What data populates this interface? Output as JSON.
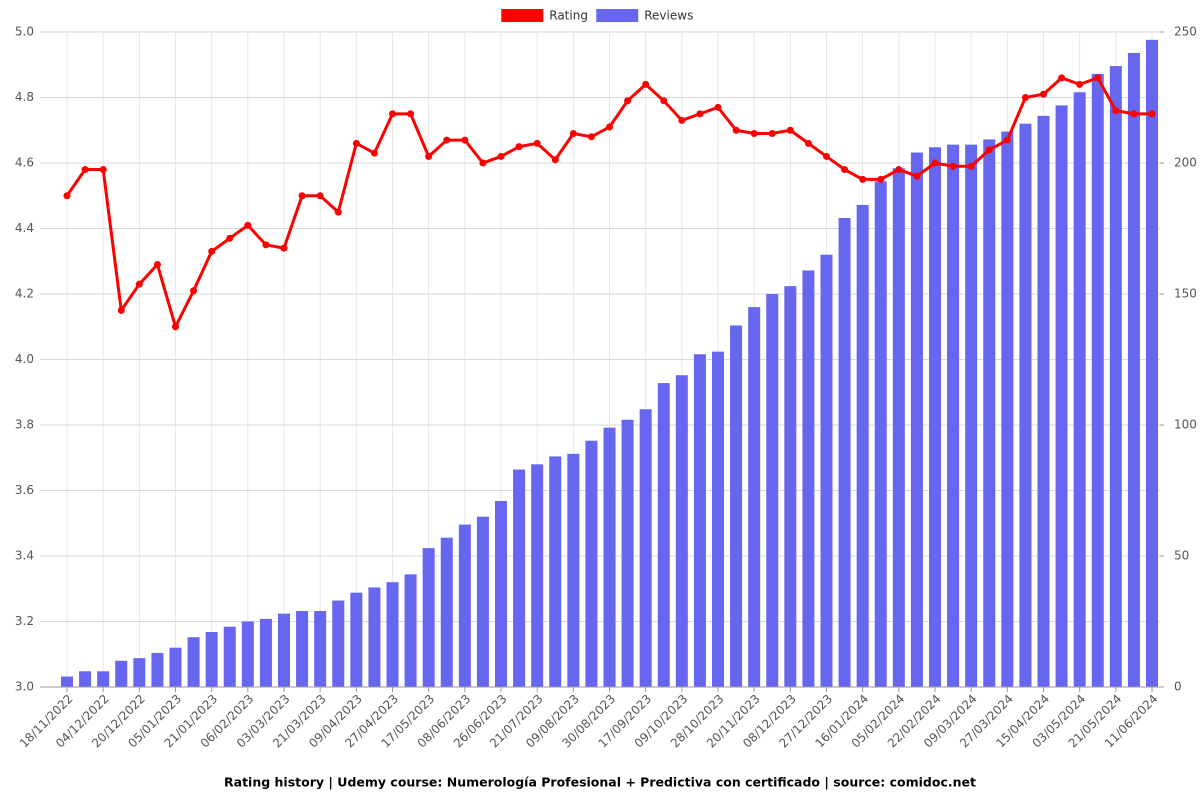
{
  "chart_data": {
    "type": "combo",
    "title": "Rating history | Udemy course: Numerología Profesional + Predictiva con certificado | source: comidoc.net",
    "categories": [
      "18/11/2022",
      null,
      "04/12/2022",
      null,
      "20/12/2022",
      null,
      "05/01/2023",
      null,
      "21/01/2023",
      null,
      "06/02/2023",
      null,
      "03/03/2023",
      null,
      "21/03/2023",
      null,
      "09/04/2023",
      null,
      "27/04/2023",
      null,
      "17/05/2023",
      null,
      "08/06/2023",
      null,
      "26/06/2023",
      null,
      "21/07/2023",
      null,
      "09/08/2023",
      null,
      "30/08/2023",
      null,
      "17/09/2023",
      null,
      "09/10/2023",
      null,
      "28/10/2023",
      null,
      "20/11/2023",
      null,
      "08/12/2023",
      null,
      "27/12/2023",
      null,
      "16/01/2024",
      null,
      "05/02/2024",
      null,
      "22/02/2024",
      null,
      "09/03/2024",
      null,
      "27/03/2024",
      null,
      "15/04/2024",
      null,
      "03/05/2024",
      null,
      "21/05/2024",
      null,
      "11/06/2024"
    ],
    "series": [
      {
        "name": "Rating",
        "type": "line",
        "color": "#ff0000",
        "axis": "y",
        "values": [
          4.5,
          4.58,
          4.58,
          4.15,
          4.23,
          4.29,
          4.1,
          4.21,
          4.33,
          4.37,
          4.41,
          4.35,
          4.34,
          4.5,
          4.5,
          4.45,
          4.66,
          4.63,
          4.75,
          4.75,
          4.62,
          4.67,
          4.67,
          4.6,
          4.62,
          4.65,
          4.66,
          4.61,
          4.69,
          4.68,
          4.71,
          4.79,
          4.84,
          4.79,
          4.73,
          4.75,
          4.77,
          4.7,
          4.69,
          4.69,
          4.7,
          4.66,
          4.62,
          4.58,
          4.55,
          4.55,
          4.58,
          4.56,
          4.6,
          4.59,
          4.59,
          4.64,
          4.67,
          4.8,
          4.81,
          4.86,
          4.84,
          4.86,
          4.76,
          4.75,
          4.75
        ]
      },
      {
        "name": "Reviews",
        "type": "bar",
        "color": "#6666ee",
        "axis": "y2",
        "values": [
          4,
          6,
          6,
          10,
          11,
          13,
          15,
          19,
          21,
          23,
          25,
          26,
          28,
          29,
          29,
          33,
          36,
          38,
          40,
          43,
          53,
          57,
          62,
          65,
          71,
          83,
          85,
          88,
          89,
          94,
          99,
          102,
          106,
          116,
          119,
          127,
          128,
          138,
          145,
          150,
          153,
          159,
          165,
          179,
          184,
          193,
          198,
          204,
          206,
          207,
          207,
          209,
          212,
          215,
          218,
          222,
          227,
          234,
          237,
          242,
          247
        ]
      }
    ],
    "ylim": [
      3,
      5
    ],
    "yticks": [
      {
        "value": 3,
        "label": "3.0"
      },
      3.2,
      3.4,
      3.6,
      3.8,
      {
        "value": 4,
        "label": "4.0"
      },
      4.2,
      4.4,
      4.6,
      4.8,
      {
        "value": 5,
        "label": "5.0"
      }
    ],
    "y2lim": [
      0,
      250
    ],
    "y2ticks": [
      0,
      50,
      100,
      150,
      200,
      250
    ],
    "grid": true,
    "legend": "top"
  }
}
